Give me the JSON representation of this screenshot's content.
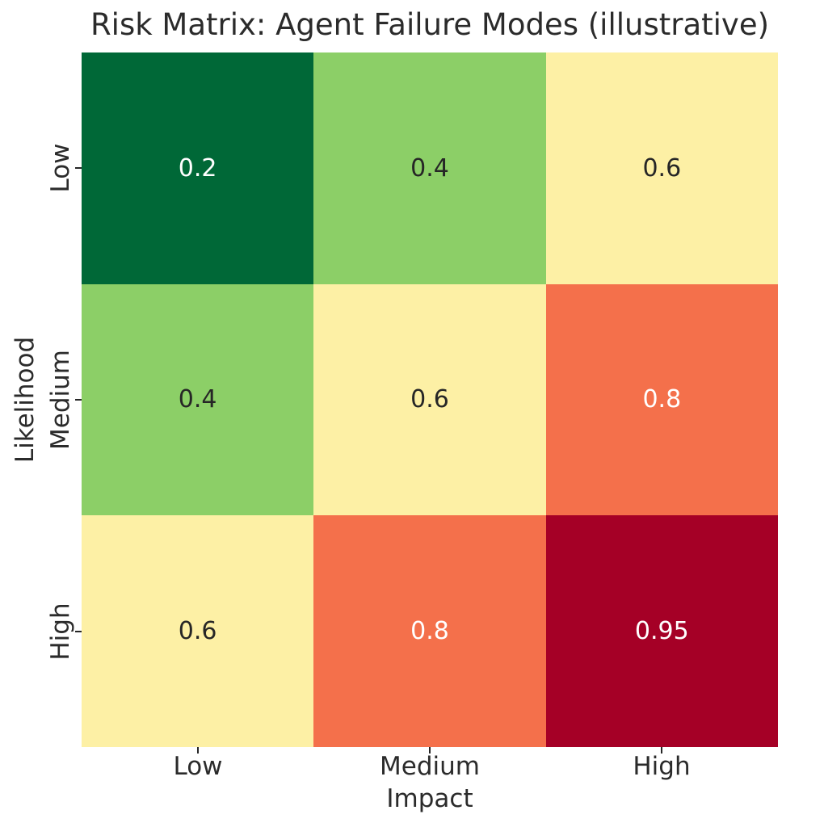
{
  "title": "Risk Matrix: Agent Failure Modes (illustrative)",
  "chart_data": {
    "type": "heatmap",
    "title": "Risk Matrix: Agent Failure Modes (illustrative)",
    "xlabel": "Impact",
    "ylabel": "Likelihood",
    "x_categories": [
      "Low",
      "Medium",
      "High"
    ],
    "y_categories": [
      "Low",
      "Medium",
      "High"
    ],
    "values": [
      [
        0.2,
        0.4,
        0.6
      ],
      [
        0.4,
        0.6,
        0.8
      ],
      [
        0.6,
        0.8,
        0.95
      ]
    ],
    "cell_colors": [
      [
        "#006837",
        "#8ccf67",
        "#fdf0a5"
      ],
      [
        "#8ccf67",
        "#fdf0a5",
        "#f4704b"
      ],
      [
        "#fdf0a5",
        "#f4704b",
        "#a50026"
      ]
    ],
    "text_colors": [
      [
        "#ffffff",
        "#262626",
        "#262626"
      ],
      [
        "#262626",
        "#262626",
        "#ffffff"
      ],
      [
        "#262626",
        "#ffffff",
        "#ffffff"
      ]
    ],
    "colormap": "RdYlGn_r",
    "grid": false,
    "legend": false,
    "annotated": true
  },
  "colors": {
    "background": "#ffffff",
    "text_dark": "#262626",
    "text_light": "#ffffff",
    "tick": "#262626"
  }
}
